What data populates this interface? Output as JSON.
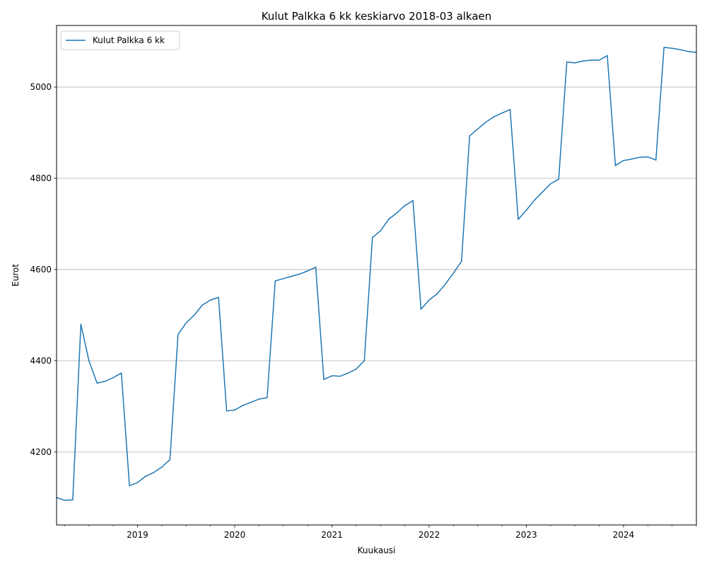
{
  "chart_data": {
    "type": "line",
    "title": "Kulut Palkka 6 kk keskiarvo 2018-03 alkaen",
    "xlabel": "Kuukausi",
    "ylabel": "Eurot",
    "xlim": [
      "2018-03",
      "2024-10"
    ],
    "ylim": [
      4040,
      5135
    ],
    "x_ticks": [
      {
        "date": "2019-01",
        "label": "2019"
      },
      {
        "date": "2020-01",
        "label": "2020"
      },
      {
        "date": "2021-01",
        "label": "2021"
      },
      {
        "date": "2022-01",
        "label": "2022"
      },
      {
        "date": "2023-01",
        "label": "2023"
      },
      {
        "date": "2024-01",
        "label": "2024"
      }
    ],
    "y_ticks": [
      4200,
      4400,
      4600,
      4800,
      5000
    ],
    "grid": "horizontal",
    "legend": "upper-left",
    "line_color": "#1f77b4",
    "series": [
      {
        "name": "Kulut Palkka 6 kk",
        "x": [
          "2018-03",
          "2018-04",
          "2018-05",
          "2018-06",
          "2018-07",
          "2018-08",
          "2018-09",
          "2018-10",
          "2018-11",
          "2018-12",
          "2019-01",
          "2019-02",
          "2019-03",
          "2019-04",
          "2019-05",
          "2019-06",
          "2019-07",
          "2019-08",
          "2019-09",
          "2019-10",
          "2019-11",
          "2019-12",
          "2020-01",
          "2020-02",
          "2020-03",
          "2020-04",
          "2020-05",
          "2020-06",
          "2020-07",
          "2020-08",
          "2020-09",
          "2020-10",
          "2020-11",
          "2020-12",
          "2021-01",
          "2021-02",
          "2021-03",
          "2021-04",
          "2021-05",
          "2021-06",
          "2021-07",
          "2021-08",
          "2021-09",
          "2021-10",
          "2021-11",
          "2021-12",
          "2022-01",
          "2022-02",
          "2022-03",
          "2022-04",
          "2022-05",
          "2022-06",
          "2022-07",
          "2022-08",
          "2022-09",
          "2022-10",
          "2022-11",
          "2022-12",
          "2023-01",
          "2023-02",
          "2023-03",
          "2023-04",
          "2023-05",
          "2023-06",
          "2023-07",
          "2023-08",
          "2023-09",
          "2023-10",
          "2023-11",
          "2023-12",
          "2024-01",
          "2024-02",
          "2024-03",
          "2024-04",
          "2024-05",
          "2024-06",
          "2024-07",
          "2024-08",
          "2024-09",
          "2024-10"
        ],
        "values": [
          4100,
          4094,
          4095,
          4480,
          4400,
          4351,
          4355,
          4363,
          4373,
          4126,
          4133,
          4147,
          4155,
          4167,
          4183,
          4458,
          4483,
          4500,
          4522,
          4533,
          4539,
          4290,
          4292,
          4302,
          4309,
          4316,
          4319,
          4575,
          4580,
          4585,
          4590,
          4597,
          4605,
          4359,
          4367,
          4366,
          4373,
          4382,
          4400,
          4670,
          4685,
          4710,
          4724,
          4740,
          4751,
          4513,
          4533,
          4547,
          4568,
          4592,
          4618,
          4893,
          4908,
          4923,
          4935,
          4943,
          4951,
          4710,
          4730,
          4752,
          4770,
          4788,
          4798,
          5055,
          5053,
          5057,
          5059,
          5059,
          5069,
          4828,
          4839,
          4842,
          4846,
          4847,
          4840,
          5087,
          5085,
          5082,
          5078,
          5076
        ]
      }
    ]
  }
}
